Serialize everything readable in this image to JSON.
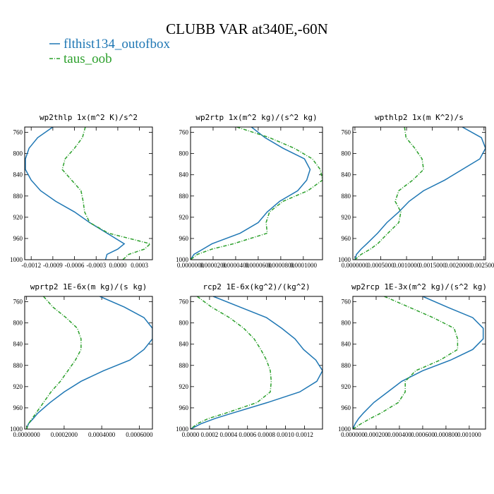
{
  "title": "CLUBB VAR at340E,-60N",
  "legend": [
    {
      "name": "flthist134_outofbox",
      "color": "#1f77b4",
      "dash": "solid"
    },
    {
      "name": "taus_oob",
      "color": "#2ca02c",
      "dash": "dashed"
    }
  ],
  "levels": [
    750,
    770,
    790,
    810,
    830,
    850,
    870,
    890,
    910,
    930,
    950,
    970,
    980,
    990,
    1000
  ],
  "chart_data": [
    {
      "type": "line",
      "title": "wp2thlp  1x(m^2 K)/s^2",
      "xlim": [
        -0.00129,
        0.00048
      ],
      "xticks": [
        -0.0012,
        -0.0009,
        -0.0006,
        -0.0003,
        {
          "value": 0,
          "label": "0.0000"
        },
        0.0003
      ],
      "ylim": [
        1000,
        750
      ],
      "yticks": [
        760,
        800,
        840,
        880,
        920,
        960,
        1000
      ],
      "series": [
        {
          "values": [
            -0.0009,
            -0.00111,
            -0.00123,
            -0.00128,
            -0.00128,
            -0.0012,
            -0.00107,
            -0.00086,
            -0.0006,
            -0.00039,
            -0.00015,
            9e-05,
            0.0,
            -0.00015,
            -0.00017
          ]
        },
        {
          "values": [
            -0.00045,
            -0.00049,
            -0.0006,
            -0.00073,
            -0.00077,
            -0.00064,
            -0.00051,
            -0.00048,
            -0.00046,
            -0.00039,
            -0.00013,
            0.00045,
            0.00037,
            0.00015,
            7e-05
          ]
        }
      ]
    },
    {
      "type": "line",
      "title": "wp2rtp  1x(m^2 kg)/(s^2 kg)",
      "xlim": [
        0,
        0.000117
      ],
      "xticks": [
        {
          "value": 0,
          "label": "0.0000000"
        },
        {
          "value": 2e-05,
          "label": "0.0000200"
        },
        {
          "value": 4e-05,
          "label": "0.0000400"
        },
        {
          "value": 6e-05,
          "label": "0.0000600"
        },
        {
          "value": 8e-05,
          "label": "0.0000800"
        },
        {
          "value": 0.0001,
          "label": "0.0001000"
        }
      ],
      "ylim": [
        1000,
        750
      ],
      "yticks": [
        760,
        800,
        840,
        880,
        920,
        960,
        1000
      ],
      "series": [
        {
          "values": [
            5.4e-05,
            6.6e-05,
            8.2e-05,
            0.000101,
            0.000106,
            0.000103,
            9.5e-05,
            7.9e-05,
            6.8e-05,
            6e-05,
            4.4e-05,
            1.9e-05,
            1.1e-05,
            3e-06,
            0
          ]
        },
        {
          "values": [
            4.1e-05,
            7e-05,
            9.2e-05,
            0.000108,
            0.000115,
            0.000117,
            0.000104,
            8.2e-05,
            7e-05,
            6.7e-05,
            6.8e-05,
            3.8e-05,
            1.9e-05,
            6e-06,
            0
          ]
        }
      ]
    },
    {
      "type": "line",
      "title": "wpthlp2  1x(m K^2)/s",
      "xlim": [
        -4e-05,
        0.00253
      ],
      "xticks": [
        {
          "value": 0,
          "label": "0.0000000"
        },
        {
          "value": 0.0005,
          "label": "0.0005000"
        },
        {
          "value": 0.001,
          "label": "0.0010000"
        },
        {
          "value": 0.0015,
          "label": "0.0015000"
        },
        {
          "value": 0.002,
          "label": "0.0020000"
        },
        {
          "value": 0.0025,
          "label": "0.0025000"
        }
      ],
      "ylim": [
        1000,
        750
      ],
      "yticks": [
        760,
        800,
        840,
        880,
        920,
        960,
        1000
      ],
      "series": [
        {
          "values": [
            0.00208,
            0.00245,
            0.00253,
            0.00242,
            0.00208,
            0.00174,
            0.00133,
            0.00105,
            0.00085,
            0.00062,
            0.00044,
            0.00023,
            0.00012,
            3e-05,
            0
          ]
        },
        {
          "values": [
            0.00096,
            0.00099,
            0.00116,
            0.0013,
            0.00133,
            0.00112,
            0.00085,
            0.00078,
            0.00089,
            0.00085,
            0.00064,
            0.00044,
            0.0003,
            0.00012,
            0
          ]
        }
      ]
    },
    {
      "type": "line",
      "title": "wprtp2  1E-6x(m kg)/(s kg)",
      "xlim": [
        -1e-05,
        0.00067
      ],
      "xticks": [
        {
          "value": 0,
          "label": "0.0000000"
        },
        {
          "value": 0.0002,
          "label": "0.0002000"
        },
        {
          "value": 0.0004,
          "label": "0.0004000"
        },
        {
          "value": 0.0006,
          "label": "0.0006000"
        }
      ],
      "ylim": [
        1000,
        750
      ],
      "yticks": [
        760,
        800,
        840,
        880,
        920,
        960,
        1000
      ],
      "series": [
        {
          "values": [
            0.00039,
            0.00052,
            0.000625,
            0.00067,
            0.00067,
            0.000625,
            0.00055,
            0.00041,
            0.00029,
            0.0002,
            0.000125,
            6e-05,
            3.6e-05,
            1e-05,
            0
          ]
        },
        {
          "values": [
            9e-05,
            0.00014,
            0.00021,
            0.00027,
            0.00029,
            0.00029,
            0.00026,
            0.00022,
            0.00018,
            0.00013,
            9e-05,
            5e-05,
            3e-05,
            1e-05,
            0
          ]
        }
      ]
    },
    {
      "type": "line",
      "title": "rcp2  1E-6x(kg^2)/(kg^2)",
      "xlim": [
        0,
        0.00139
      ],
      "xticks": [
        {
          "value": 0,
          "label": "0.0000"
        },
        0.0002,
        0.0004,
        0.0006,
        0.0008,
        {
          "value": 0.001,
          "label": "0.0010"
        },
        0.0012
      ],
      "ylim": [
        1000,
        750
      ],
      "yticks": [
        760,
        800,
        840,
        880,
        920,
        960,
        1000
      ],
      "series": [
        {
          "values": [
            0.00024,
            0.00052,
            0.0008,
            0.00096,
            0.0011,
            0.00119,
            0.00132,
            0.00139,
            0.00133,
            0.00115,
            0.00081,
            0.00044,
            0.00026,
            0.00011,
            0
          ]
        },
        {
          "values": [
            7e-05,
            0.00022,
            0.00041,
            0.00056,
            0.00067,
            0.00074,
            0.0008,
            0.00084,
            0.00085,
            0.00084,
            0.0007,
            0.00037,
            0.00019,
            7e-05,
            0
          ]
        }
      ]
    },
    {
      "type": "line",
      "title": "wp2rcp  1E-3x(m^2 kg)/(s^2 kg)",
      "xlim": [
        0,
        0.00114
      ],
      "xticks": [
        {
          "value": 0,
          "label": "0.000000"
        },
        {
          "value": 0.0002,
          "label": "0.000200"
        },
        {
          "value": 0.0004,
          "label": "0.000400"
        },
        {
          "value": 0.0006,
          "label": "0.000600"
        },
        {
          "value": 0.0008,
          "label": "0.000800"
        },
        {
          "value": 0.001,
          "label": "0.001000"
        }
      ],
      "ylim": [
        1000,
        750
      ],
      "yticks": [
        760,
        800,
        840,
        880,
        920,
        960,
        1000
      ],
      "series": [
        {
          "values": [
            0.0006,
            0.00081,
            0.00103,
            0.00112,
            0.00112,
            0.00103,
            0.00084,
            0.0006,
            0.00042,
            0.0003,
            0.00018,
            9e-05,
            5e-05,
            2e-05,
            0
          ]
        },
        {
          "values": [
            0.00027,
            0.00048,
            0.00069,
            0.00087,
            0.0009,
            0.0009,
            0.00075,
            0.00054,
            0.00045,
            0.00045,
            0.00039,
            0.00024,
            0.00015,
            7e-05,
            0
          ]
        }
      ]
    }
  ]
}
